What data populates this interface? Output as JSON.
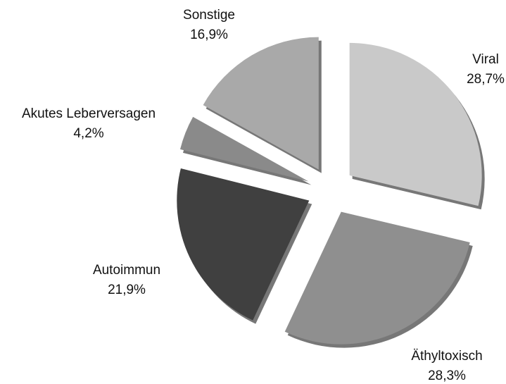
{
  "chart_data": {
    "type": "pie",
    "categories": [
      "Viral",
      "Äthyltoxisch",
      "Autoimmun",
      "Akutes Leberversagen",
      "Sonstige"
    ],
    "values": [
      28.7,
      28.3,
      21.9,
      4.2,
      16.9
    ],
    "value_labels": [
      "28,7%",
      "28,3%",
      "21,9%",
      "4,2%",
      "16,9%"
    ],
    "colors": [
      "#c9c9c9",
      "#8f8f8f",
      "#404040",
      "#8a8a8a",
      "#a9a9a9"
    ]
  }
}
